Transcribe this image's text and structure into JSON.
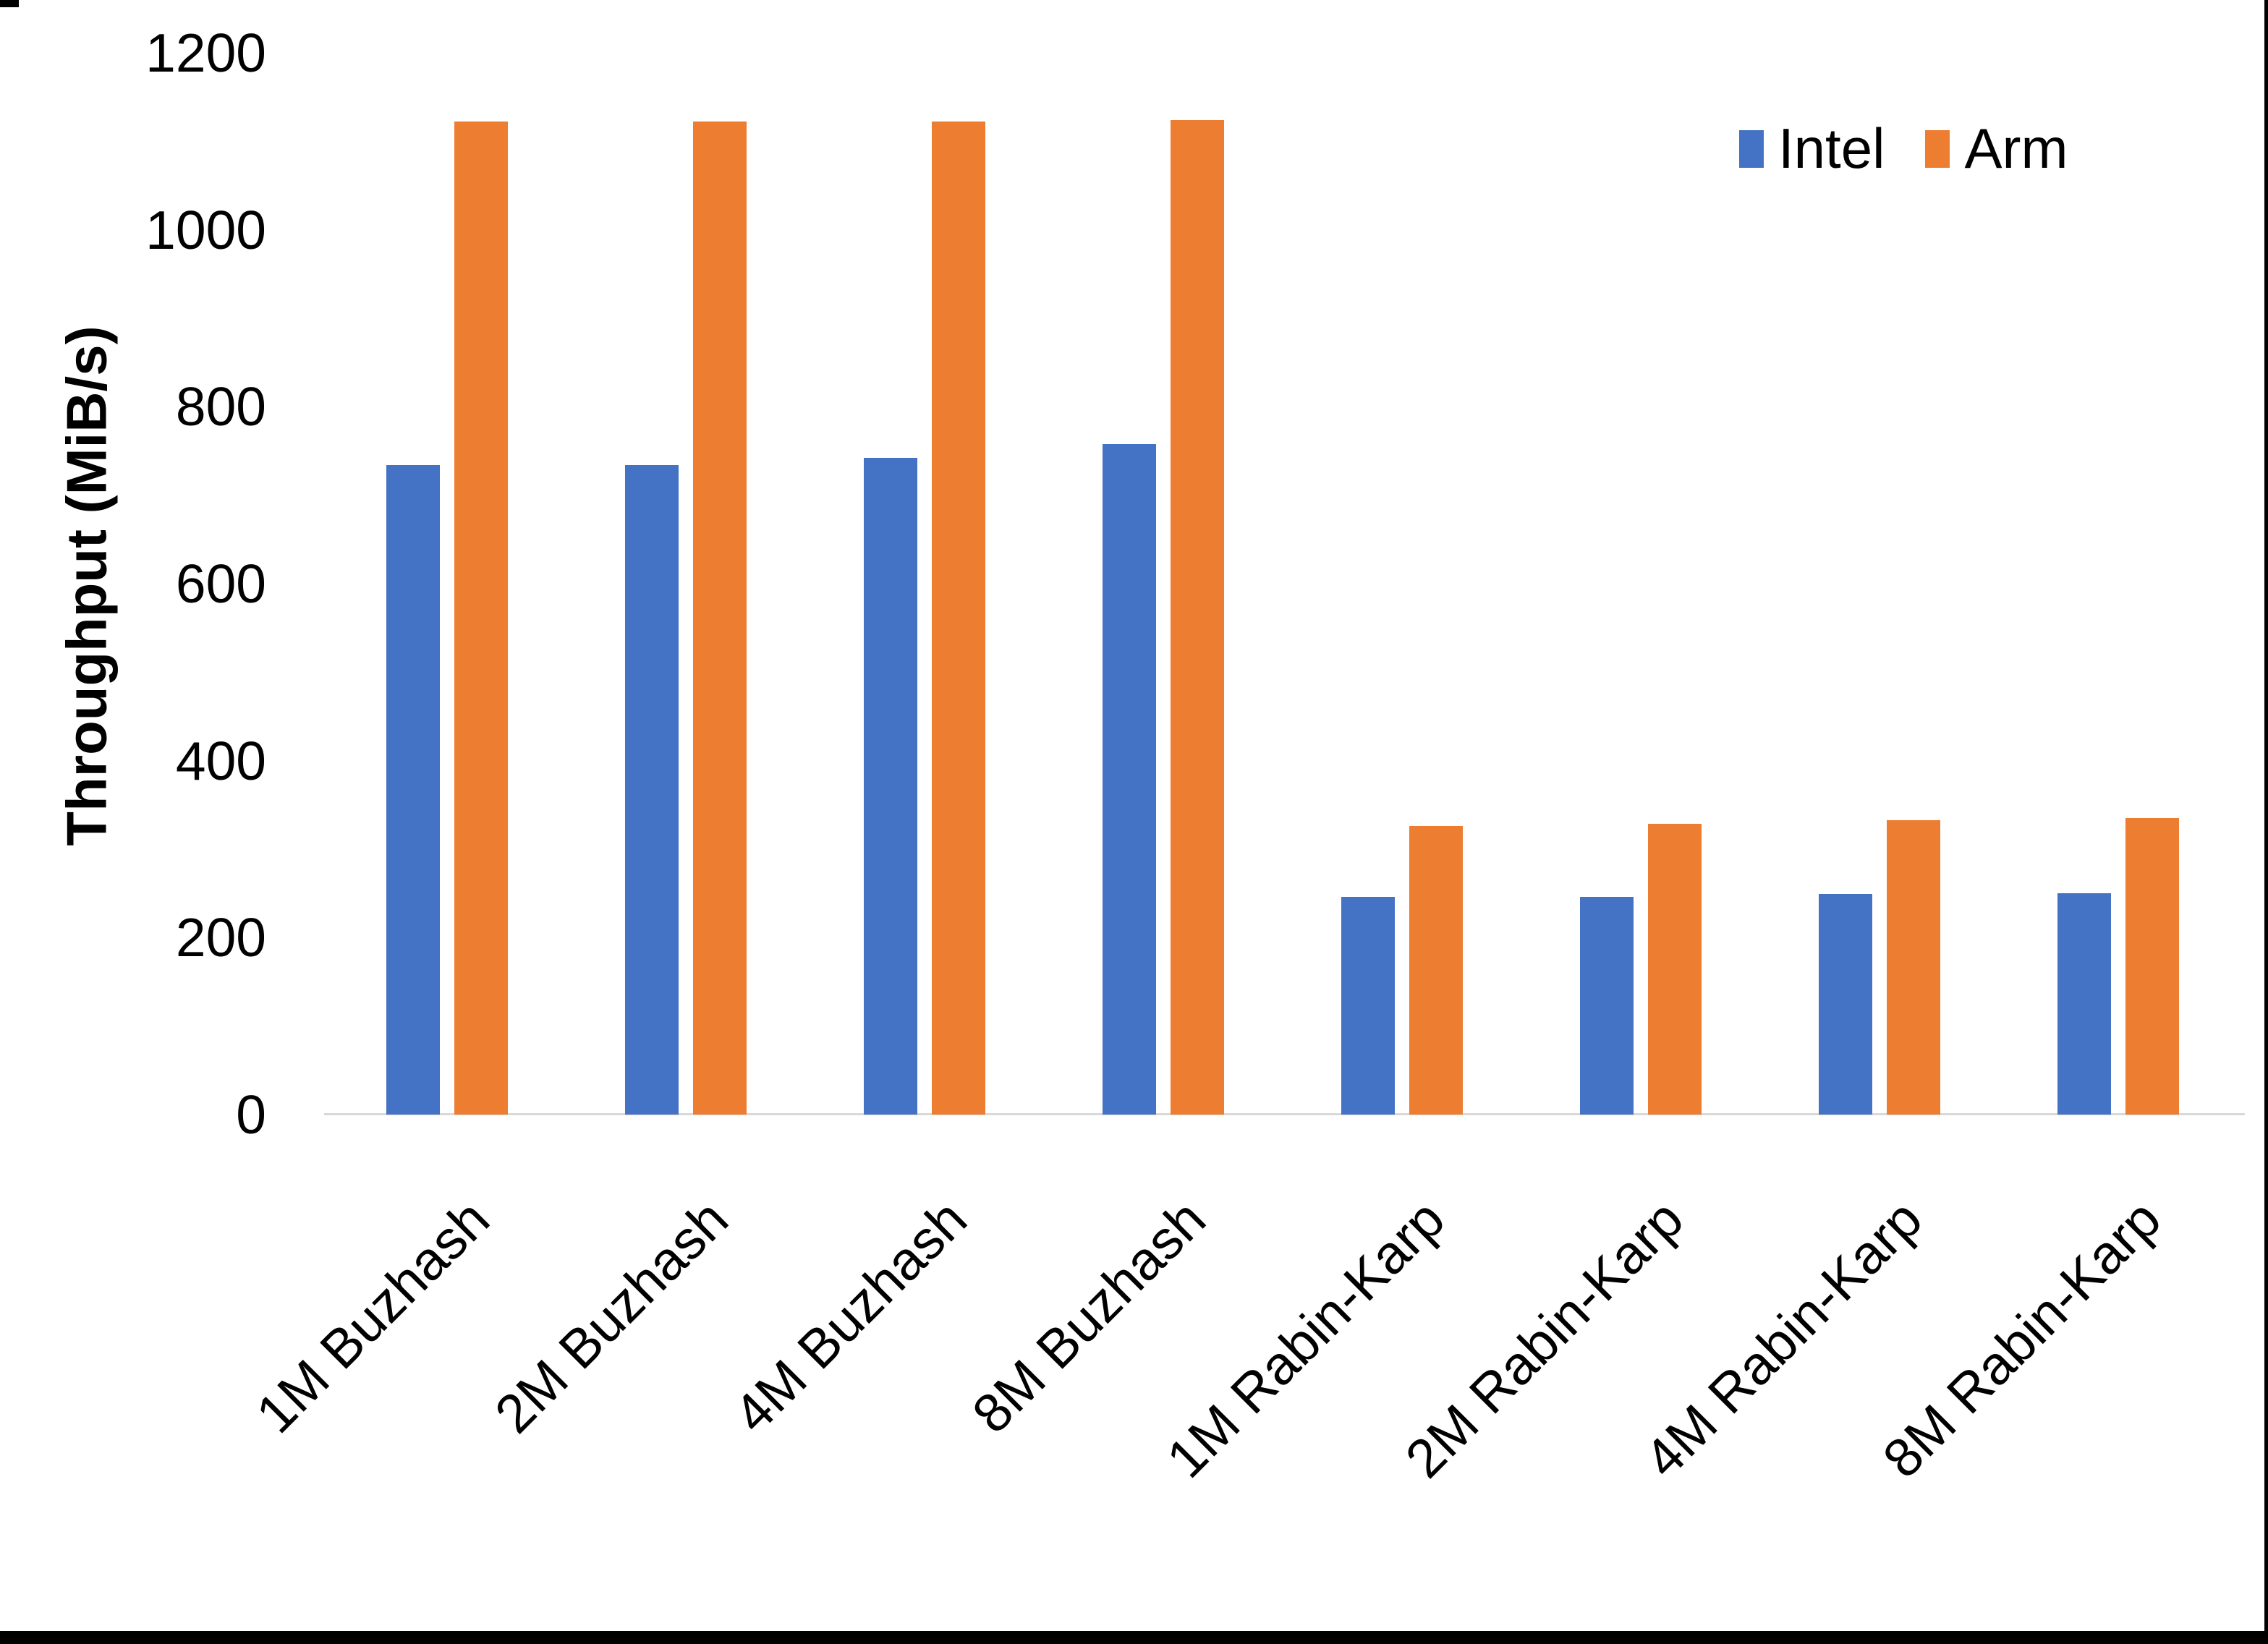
{
  "chart_data": {
    "type": "bar",
    "title": "",
    "categories": [
      "1M Buzhash",
      "2M Buzhash",
      "4M Buzhash",
      "8M Buzhash",
      "1M Rabin-Karp",
      "2M Rabin-Karp",
      "4M Rabin-Karp",
      "8M Rabin-Karp"
    ],
    "series": [
      {
        "name": "Intel",
        "color": "#4472C4",
        "values": [
          734,
          734,
          742,
          758,
          246,
          246,
          249,
          250
        ]
      },
      {
        "name": "Arm",
        "color": "#ED7D31",
        "values": [
          1122,
          1122,
          1122,
          1124,
          326,
          329,
          333,
          335
        ]
      }
    ],
    "xlabel": "",
    "ylabel": "Throughput (MiB/s)",
    "ylim": [
      0,
      1200
    ],
    "ytick_step": 200,
    "yticks": [
      "0",
      "200",
      "400",
      "600",
      "800",
      "1000",
      "1200"
    ],
    "grid": false,
    "legend_position": "top-right",
    "legend": [
      "Intel",
      "Arm"
    ],
    "axis_line_color": "#D9D9D9",
    "text_color": "#000000",
    "background": "#FFFFFF",
    "frame_color": "#000000"
  }
}
